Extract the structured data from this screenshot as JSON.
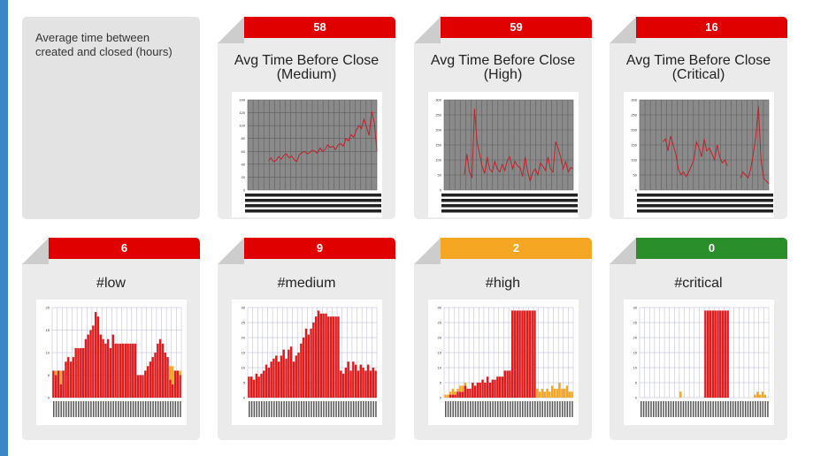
{
  "colors": {
    "red": "#e00000",
    "orange": "#f5a623",
    "green": "#2a8f2a"
  },
  "info": {
    "description": "Average time between created and closed (hours)"
  },
  "cards": [
    {
      "count": "58",
      "badge_color": "#e00000",
      "title_line1": "Avg Time Before Close",
      "title_line2": "(Medium)"
    },
    {
      "count": "59",
      "badge_color": "#e00000",
      "title_line1": "Avg Time Before Close",
      "title_line2": "(High)"
    },
    {
      "count": "16",
      "badge_color": "#e00000",
      "title_line1": "Avg Time Before Close",
      "title_line2": "(Critical)"
    },
    {
      "count": "6",
      "badge_color": "#e00000",
      "title_line1": "#low",
      "title_line2": ""
    },
    {
      "count": "9",
      "badge_color": "#e00000",
      "title_line1": "#medium",
      "title_line2": ""
    },
    {
      "count": "2",
      "badge_color": "#f5a623",
      "title_line1": "#high",
      "title_line2": ""
    },
    {
      "count": "0",
      "badge_color": "#2a8f2a",
      "title_line1": "#critical",
      "title_line2": ""
    }
  ],
  "chart_data": [
    {
      "type": "line",
      "yticks": [
        "140",
        "120",
        "100",
        "80",
        "60",
        "40",
        "20",
        "0"
      ],
      "ylim": [
        0,
        140
      ],
      "values": [
        null,
        null,
        null,
        null,
        null,
        null,
        null,
        null,
        45,
        50,
        44,
        46,
        52,
        48,
        54,
        56,
        50,
        53,
        47,
        44,
        55,
        58,
        60,
        56,
        58,
        62,
        60,
        57,
        65,
        60,
        63,
        70,
        66,
        68,
        63,
        70,
        72,
        68,
        80,
        76,
        86,
        82,
        92,
        100,
        95,
        110,
        98,
        85,
        122,
        105,
        60
      ]
    },
    {
      "type": "line",
      "yticks": [
        "300",
        "250",
        "200",
        "150",
        "100",
        "50",
        "0"
      ],
      "ylim": [
        0,
        300
      ],
      "values": [
        null,
        null,
        null,
        null,
        null,
        null,
        null,
        null,
        50,
        120,
        60,
        40,
        270,
        160,
        120,
        80,
        55,
        110,
        70,
        60,
        95,
        70,
        60,
        85,
        65,
        100,
        110,
        70,
        95,
        80,
        75,
        45,
        110,
        60,
        30,
        60,
        70,
        50,
        90,
        80,
        65,
        110,
        70,
        60,
        160,
        140,
        110,
        70,
        95,
        60,
        75,
        70
      ]
    },
    {
      "type": "line",
      "yticks": [
        "300",
        "250",
        "200",
        "150",
        "100",
        "50",
        "0"
      ],
      "ylim": [
        0,
        300
      ],
      "values": [
        null,
        null,
        null,
        null,
        null,
        null,
        null,
        null,
        null,
        160,
        170,
        130,
        180,
        150,
        120,
        70,
        50,
        60,
        45,
        60,
        80,
        100,
        160,
        140,
        110,
        170,
        130,
        140,
        120,
        100,
        150,
        110,
        90,
        100,
        80,
        null,
        null,
        null,
        null,
        40,
        60,
        50,
        40,
        70,
        120,
        180,
        280,
        100,
        40,
        30,
        20
      ]
    },
    {
      "type": "bar",
      "yticks": [
        "20",
        "15",
        "10",
        "5",
        "0"
      ],
      "ylim": [
        0,
        20
      ],
      "values": [
        6,
        5,
        6,
        3,
        6,
        8,
        9,
        8,
        9,
        11,
        11,
        11,
        11,
        13,
        14,
        15,
        16,
        19,
        18,
        14,
        13,
        12,
        13,
        11,
        14,
        12,
        12,
        12,
        12,
        12,
        12,
        12,
        12,
        12,
        5,
        5,
        5,
        6,
        7,
        8,
        9,
        10,
        12,
        13,
        12,
        10,
        9,
        4,
        3,
        6,
        6,
        5
      ],
      "orange": [
        0,
        1,
        0,
        3,
        0,
        0,
        0,
        0,
        0,
        0,
        0,
        0,
        0,
        0,
        0,
        0,
        0,
        0,
        0,
        0,
        0,
        0,
        0,
        0,
        0,
        0,
        0,
        0,
        0,
        0,
        0,
        0,
        0,
        0,
        0,
        0,
        0,
        0,
        0,
        0,
        0,
        0,
        0,
        0,
        0,
        0,
        0,
        3,
        4,
        0,
        0,
        1
      ]
    },
    {
      "type": "bar",
      "yticks": [
        "30",
        "25",
        "20",
        "15",
        "10",
        "5",
        "0"
      ],
      "ylim": [
        0,
        30
      ],
      "values": [
        7,
        7,
        6,
        8,
        7,
        8,
        9,
        11,
        10,
        12,
        13,
        14,
        12,
        14,
        16,
        13,
        16,
        17,
        12,
        14,
        15,
        18,
        20,
        23,
        21,
        23,
        25,
        27,
        29,
        28,
        28,
        28,
        27,
        27,
        27,
        27,
        27,
        9,
        8,
        10,
        12,
        9,
        12,
        11,
        9,
        11,
        10,
        9,
        11,
        9,
        10,
        9
      ],
      "orange": []
    },
    {
      "type": "bar",
      "yticks": [
        "30",
        "25",
        "20",
        "15",
        "10",
        "5",
        "0"
      ],
      "ylim": [
        0,
        30
      ],
      "values": [
        0,
        0,
        1,
        1,
        1,
        2,
        2,
        2,
        4,
        3,
        3,
        5,
        4,
        5,
        5,
        6,
        5,
        7,
        5,
        6,
        6,
        7,
        7,
        7,
        9,
        9,
        9,
        29,
        29,
        29,
        29,
        29,
        29,
        29,
        29,
        29,
        29,
        0,
        0,
        0,
        0,
        0,
        0,
        0,
        0,
        0,
        0,
        0,
        0,
        0,
        0,
        0
      ],
      "orange": [
        1,
        1,
        1,
        2,
        1,
        1,
        2,
        2,
        1,
        0,
        0,
        0,
        0,
        0,
        0,
        0,
        0,
        0,
        0,
        0,
        0,
        0,
        0,
        0,
        0,
        0,
        0,
        0,
        0,
        0,
        0,
        0,
        0,
        0,
        0,
        0,
        0,
        3,
        2,
        3,
        2,
        3,
        2,
        4,
        3,
        3,
        5,
        3,
        3,
        4,
        2,
        2
      ]
    },
    {
      "type": "bar",
      "yticks": [
        "30",
        "25",
        "20",
        "15",
        "10",
        "5",
        "0"
      ],
      "ylim": [
        0,
        30
      ],
      "values": [
        0,
        0,
        0,
        0,
        0,
        0,
        0,
        0,
        0,
        0,
        0,
        0,
        0,
        0,
        0,
        0,
        0,
        0,
        0,
        0,
        0,
        0,
        0,
        0,
        0,
        0,
        29,
        29,
        29,
        29,
        29,
        29,
        29,
        29,
        29,
        29,
        0,
        0,
        0,
        0,
        0,
        0,
        0,
        0,
        0,
        0,
        0,
        0,
        0,
        0,
        0,
        0
      ],
      "orange": [
        0,
        0,
        0,
        0,
        0,
        0,
        0,
        0,
        0,
        0,
        0,
        0,
        0,
        0,
        0,
        0,
        2,
        0,
        0,
        0,
        0,
        0,
        0,
        0,
        0,
        0,
        0,
        0,
        0,
        0,
        0,
        0,
        0,
        0,
        0,
        0,
        0,
        0,
        0,
        0,
        0,
        0,
        0,
        0,
        0,
        0,
        1,
        2,
        1,
        2,
        1,
        0
      ]
    }
  ]
}
